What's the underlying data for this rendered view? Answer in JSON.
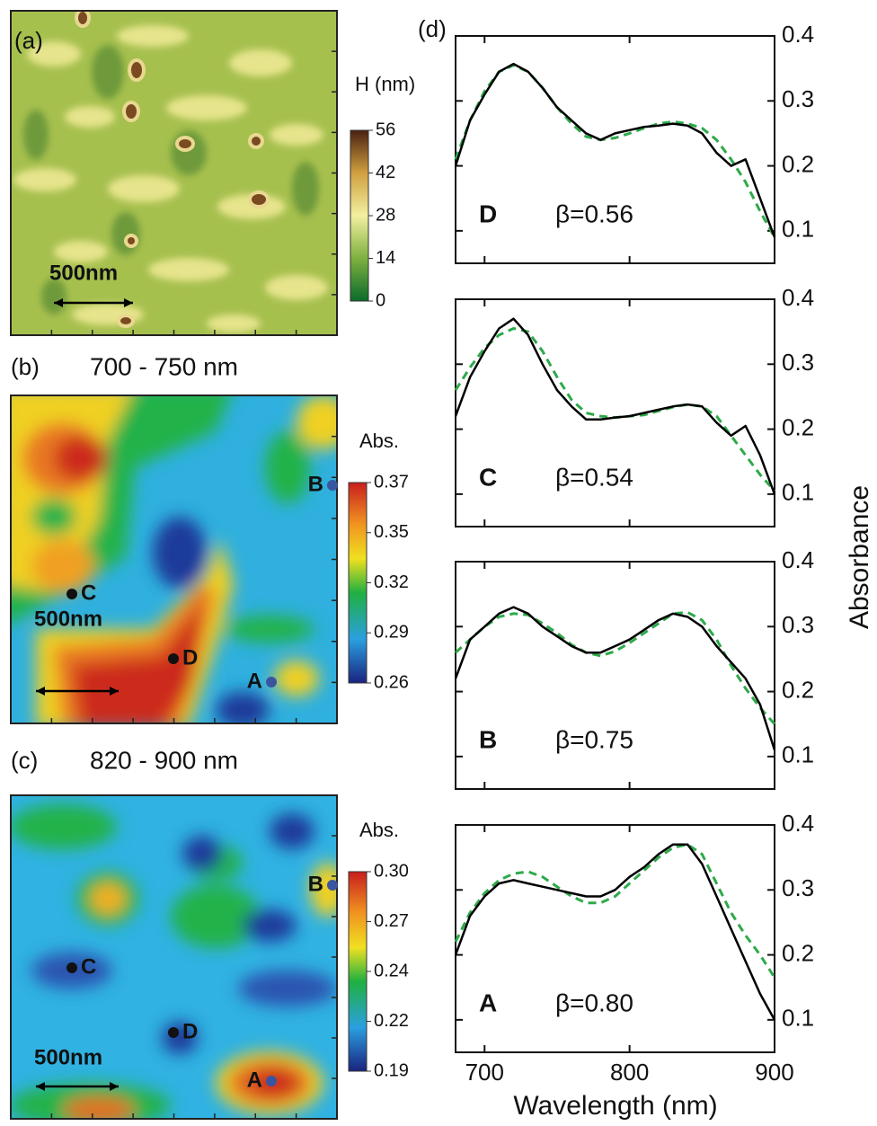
{
  "maps": [
    {
      "label": "(a)",
      "colorbar_title": "H (nm)",
      "colorbar_ticks": [
        56,
        42,
        28,
        14,
        0
      ],
      "scale_bar": "500nm",
      "points": []
    },
    {
      "label": "(b)",
      "title": "700 - 750 nm",
      "colorbar_title": "Abs.",
      "colorbar_ticks": [
        0.37,
        0.35,
        0.32,
        0.29,
        0.26
      ],
      "scale_bar": "500nm",
      "points": [
        {
          "label": "B",
          "color": "#3a55a0"
        },
        {
          "label": "C",
          "color": "#111111"
        },
        {
          "label": "D",
          "color": "#111111"
        },
        {
          "label": "A",
          "color": "#3a55a0"
        }
      ]
    },
    {
      "label": "(c)",
      "title": "820 - 900 nm",
      "colorbar_title": "Abs.",
      "colorbar_ticks": [
        {
          "value": 0.3,
          "label": "0.30"
        },
        0.27,
        0.24,
        0.22,
        0.19
      ],
      "scale_bar": "500nm",
      "points": [
        {
          "label": "B",
          "color": "#3a55a0"
        },
        {
          "label": "C",
          "color": "#111111"
        },
        {
          "label": "D",
          "color": "#111111"
        },
        {
          "label": "A",
          "color": "#3a55a0"
        }
      ]
    }
  ],
  "panel_d": {
    "label": "(d)",
    "xlabel": "Wavelength (nm)",
    "ylabel": "Absorbance"
  },
  "chart_data": [
    {
      "type": "line",
      "label": "D",
      "label_color": "#111111",
      "annotation": "β=0.56",
      "x": [
        680,
        690,
        700,
        710,
        720,
        730,
        740,
        750,
        760,
        770,
        780,
        790,
        800,
        810,
        820,
        830,
        840,
        850,
        860,
        870,
        880,
        890,
        900
      ],
      "series": [
        {
          "color": "#000000",
          "dashed": false,
          "values": [
            0.2,
            0.27,
            0.31,
            0.345,
            0.357,
            0.345,
            0.32,
            0.29,
            0.27,
            0.25,
            0.24,
            0.25,
            0.255,
            0.26,
            0.262,
            0.265,
            0.262,
            0.25,
            0.22,
            0.2,
            0.21,
            0.15,
            0.09
          ]
        },
        {
          "color": "#2eaa4a",
          "dashed": true,
          "values": [
            0.21,
            0.27,
            0.315,
            0.345,
            0.355,
            0.345,
            0.32,
            0.29,
            0.265,
            0.245,
            0.24,
            0.243,
            0.25,
            0.258,
            0.265,
            0.268,
            0.265,
            0.258,
            0.24,
            0.21,
            0.175,
            0.13,
            0.09
          ]
        }
      ],
      "xlim": [
        680,
        900
      ],
      "xticks": [
        700,
        800,
        900
      ],
      "show_xtick_labels": false,
      "ylim": [
        0.05,
        0.4
      ],
      "yticks": [
        0.1,
        0.2,
        0.3,
        0.4
      ]
    },
    {
      "type": "line",
      "label": "C",
      "label_color": "#111111",
      "annotation": "β=0.54",
      "x": [
        680,
        690,
        700,
        710,
        720,
        730,
        740,
        750,
        760,
        770,
        780,
        790,
        800,
        810,
        820,
        830,
        840,
        850,
        860,
        870,
        880,
        890,
        900
      ],
      "series": [
        {
          "color": "#000000",
          "dashed": false,
          "values": [
            0.22,
            0.28,
            0.32,
            0.355,
            0.37,
            0.345,
            0.3,
            0.26,
            0.235,
            0.215,
            0.215,
            0.218,
            0.22,
            0.225,
            0.23,
            0.235,
            0.238,
            0.235,
            0.21,
            0.19,
            0.205,
            0.16,
            0.1
          ]
        },
        {
          "color": "#2eaa4a",
          "dashed": true,
          "values": [
            0.26,
            0.295,
            0.325,
            0.345,
            0.355,
            0.35,
            0.32,
            0.28,
            0.245,
            0.225,
            0.22,
            0.218,
            0.22,
            0.222,
            0.228,
            0.234,
            0.238,
            0.235,
            0.22,
            0.19,
            0.16,
            0.13,
            0.105
          ]
        }
      ],
      "xlim": [
        680,
        900
      ],
      "xticks": [
        700,
        800,
        900
      ],
      "show_xtick_labels": false,
      "ylim": [
        0.05,
        0.4
      ],
      "yticks": [
        0.1,
        0.2,
        0.3,
        0.4
      ]
    },
    {
      "type": "line",
      "label": "B",
      "label_color": "#3a55a0",
      "annotation": "β=0.75",
      "x": [
        680,
        690,
        700,
        710,
        720,
        730,
        740,
        750,
        760,
        770,
        780,
        790,
        800,
        810,
        820,
        830,
        840,
        850,
        860,
        870,
        880,
        890,
        900
      ],
      "series": [
        {
          "color": "#000000",
          "dashed": false,
          "values": [
            0.22,
            0.28,
            0.3,
            0.32,
            0.33,
            0.32,
            0.3,
            0.285,
            0.27,
            0.26,
            0.26,
            0.27,
            0.28,
            0.295,
            0.31,
            0.32,
            0.315,
            0.3,
            0.27,
            0.245,
            0.22,
            0.18,
            0.11
          ]
        },
        {
          "color": "#2eaa4a",
          "dashed": true,
          "values": [
            0.26,
            0.28,
            0.3,
            0.315,
            0.32,
            0.318,
            0.305,
            0.29,
            0.272,
            0.26,
            0.255,
            0.262,
            0.275,
            0.29,
            0.305,
            0.32,
            0.322,
            0.31,
            0.28,
            0.24,
            0.205,
            0.175,
            0.15
          ]
        }
      ],
      "xlim": [
        680,
        900
      ],
      "xticks": [
        700,
        800,
        900
      ],
      "show_xtick_labels": false,
      "ylim": [
        0.05,
        0.4
      ],
      "yticks": [
        0.1,
        0.2,
        0.3,
        0.4
      ]
    },
    {
      "type": "line",
      "label": "A",
      "label_color": "#3a55a0",
      "annotation": "β=0.80",
      "x": [
        680,
        690,
        700,
        710,
        720,
        730,
        740,
        750,
        760,
        770,
        780,
        790,
        800,
        810,
        820,
        830,
        840,
        850,
        860,
        870,
        880,
        890,
        900
      ],
      "series": [
        {
          "color": "#000000",
          "dashed": false,
          "values": [
            0.2,
            0.26,
            0.29,
            0.31,
            0.315,
            0.31,
            0.305,
            0.3,
            0.295,
            0.29,
            0.29,
            0.3,
            0.32,
            0.335,
            0.355,
            0.37,
            0.37,
            0.34,
            0.29,
            0.24,
            0.19,
            0.14,
            0.1
          ]
        },
        {
          "color": "#2eaa4a",
          "dashed": true,
          "values": [
            0.22,
            0.265,
            0.295,
            0.315,
            0.325,
            0.328,
            0.32,
            0.305,
            0.29,
            0.28,
            0.28,
            0.29,
            0.31,
            0.33,
            0.35,
            0.365,
            0.37,
            0.355,
            0.31,
            0.265,
            0.23,
            0.2,
            0.165
          ]
        }
      ],
      "xlim": [
        680,
        900
      ],
      "xticks": [
        700,
        800,
        900
      ],
      "show_xtick_labels": true,
      "ylim": [
        0.05,
        0.4
      ],
      "yticks": [
        0.1,
        0.2,
        0.3,
        0.4
      ]
    }
  ]
}
